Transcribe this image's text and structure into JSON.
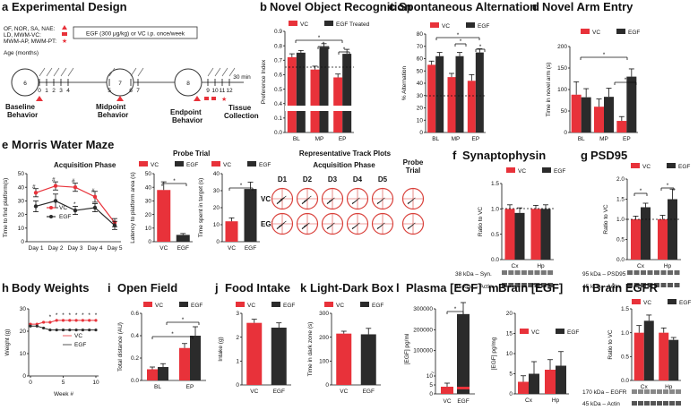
{
  "colors": {
    "vc": "#e8323a",
    "egf": "#2b2b2b",
    "axis": "#111111",
    "track": "#d9403a"
  },
  "panels": {
    "a": {
      "letter": "a",
      "title": "Experimental Design",
      "legend_items": [
        "OF, NOR, SA, NAE:",
        "LD, MWM-VC:",
        "MWM-AP, MWM-PT:"
      ],
      "treatment": "EGF (300 μg/kg) or VC i.p. once/week",
      "age_label": "Age (months)",
      "circles": [
        "6",
        "7",
        "8"
      ],
      "ticks": [
        "0",
        "1",
        "2",
        "3",
        "4",
        "5",
        "6",
        "7",
        "9",
        "10",
        "11",
        "12"
      ],
      "duration": "30 min",
      "stages": [
        "Baseline",
        "Behavior",
        "Midpoint",
        "Behavior",
        "Endpoint",
        "Behavior",
        "Tissue",
        "Collection"
      ]
    },
    "b": {
      "letter": "b",
      "title": "Novel Object Recognition"
    },
    "c": {
      "letter": "c",
      "title": "Spontaneous Alternation"
    },
    "d": {
      "letter": "d",
      "title": "Novel Arm Entry"
    },
    "e": {
      "letter": "e",
      "title": "Morris Water Maze",
      "acq_title": "Acquisition Phase",
      "probe_title": "Probe Trial",
      "track_title": "Representative Track Plots",
      "track_sub": "Acquisition Phase",
      "track_probe": "Probe Trial",
      "track_cols": [
        "D1",
        "D2",
        "D3",
        "D4",
        "D5"
      ],
      "track_rows": [
        "VC",
        "EGF"
      ]
    },
    "f": {
      "letter": "f",
      "title": "Synaptophysin",
      "blot1": "38 kDa",
      "blot1_name": "Syn.",
      "blot2": "45 kDa",
      "blot2_name": "Actin"
    },
    "g": {
      "letter": "g",
      "title": "PSD95",
      "blot1": "95 kDa",
      "blot1_name": "PSD95",
      "blot2": "45 kDa",
      "blot2_name": "Actin"
    },
    "h": {
      "letter": "h",
      "title": "Body Weights"
    },
    "i": {
      "letter": "i",
      "title": "Open Field"
    },
    "j": {
      "letter": "j",
      "title": "Food Intake"
    },
    "k": {
      "letter": "k",
      "title": "Light-Dark Box"
    },
    "l": {
      "letter": "l",
      "title": "Plasma [EGF]"
    },
    "m": {
      "letter": "m",
      "title": "Brain [EGF]"
    },
    "n": {
      "letter": "n",
      "title": "Brain EGFR",
      "blot1": "170 kDa",
      "blot1_name": "EGFR",
      "blot2": "45 kDa",
      "blot2_name": "Actin"
    }
  },
  "chart_data": [
    {
      "id": "b",
      "type": "bar",
      "title": "Novel Object Recognition",
      "ylabel": "Preference Index",
      "categories": [
        "BL",
        "MP",
        "EP"
      ],
      "ylim": [
        0.0,
        0.9
      ],
      "yticks": [
        "0.0",
        "0.1",
        "0.4",
        "0.5",
        "0.6",
        "0.7",
        "0.8",
        "0.9"
      ],
      "legend": [
        "VC",
        "EGF Treated"
      ],
      "series": [
        {
          "name": "VC",
          "values": [
            0.67,
            0.56,
            0.49
          ],
          "err": [
            0.03,
            0.03,
            0.03
          ]
        },
        {
          "name": "EGF Treated",
          "values": [
            0.71,
            0.76,
            0.7
          ],
          "err": [
            0.02,
            0.03,
            0.04
          ]
        }
      ]
    },
    {
      "id": "c",
      "type": "bar",
      "title": "Spontaneous Alternation",
      "ylabel": "% Alternation",
      "categories": [
        "BL",
        "MP",
        "EP"
      ],
      "ylim": [
        0,
        80
      ],
      "yticks": [
        "0",
        "10",
        "20",
        "30",
        "40",
        "50",
        "60",
        "70",
        "80"
      ],
      "legend": [
        "VC",
        "EGF"
      ],
      "series": [
        {
          "name": "VC",
          "values": [
            55,
            45,
            42
          ],
          "err": [
            3,
            3,
            5
          ]
        },
        {
          "name": "EGF",
          "values": [
            62,
            62,
            65
          ],
          "err": [
            3,
            3,
            3
          ]
        }
      ]
    },
    {
      "id": "d",
      "type": "bar",
      "title": "Novel Arm Entry",
      "ylabel": "Time in novel arm (s)",
      "categories": [
        "BL",
        "MP",
        "EP"
      ],
      "ylim": [
        0,
        200
      ],
      "yticks": [
        "0",
        "50",
        "100",
        "150",
        "200"
      ],
      "legend": [
        "VC",
        "EGF"
      ],
      "series": [
        {
          "name": "VC",
          "values": [
            88,
            60,
            27
          ],
          "err": [
            30,
            18,
            10
          ]
        },
        {
          "name": "EGF",
          "values": [
            82,
            83,
            130
          ],
          "err": [
            20,
            20,
            18
          ]
        }
      ]
    },
    {
      "id": "e_acq",
      "type": "line",
      "title": "Acquisition Phase",
      "ylabel": "Time to find platform(s)",
      "categories": [
        "Day 1",
        "Day 2",
        "Day 3",
        "Day 4",
        "Day 5"
      ],
      "ylim": [
        0,
        50
      ],
      "yticks": [
        "0",
        "10",
        "20",
        "30",
        "40",
        "50"
      ],
      "legend": [
        "VC",
        "EGF"
      ],
      "series": [
        {
          "name": "VC",
          "values": [
            36,
            41,
            40,
            33,
            14
          ],
          "err": [
            3,
            3,
            3,
            4,
            3
          ]
        },
        {
          "name": "EGF",
          "values": [
            26,
            30,
            23,
            25,
            12
          ],
          "err": [
            4,
            5,
            3,
            3,
            3
          ]
        }
      ]
    },
    {
      "id": "e_lat",
      "type": "bar",
      "ylabel": "Latency to platform area (s)",
      "categories": [
        "VC",
        "EGF"
      ],
      "ylim": [
        0,
        50
      ],
      "yticks": [
        "0",
        "10",
        "20",
        "30",
        "40",
        "50"
      ],
      "legend": [
        "VC",
        "EGF"
      ],
      "values": [
        38,
        5
      ],
      "err": [
        6,
        1
      ]
    },
    {
      "id": "e_tgt",
      "type": "bar",
      "ylabel": "Time spent in target (s)",
      "categories": [
        "VC",
        "EGF"
      ],
      "ylim": [
        0,
        40
      ],
      "yticks": [
        "0",
        "10",
        "20",
        "30",
        "40"
      ],
      "legend": [
        "VC",
        "EGF"
      ],
      "values": [
        12,
        31
      ],
      "err": [
        2,
        4
      ]
    },
    {
      "id": "f",
      "type": "bar",
      "title": "Synaptophysin",
      "ylabel": "Ratio to VC",
      "categories": [
        "Cx",
        "Hp"
      ],
      "ylim": [
        0.0,
        1.5
      ],
      "yticks": [
        "0.0",
        "0.5",
        "1.0",
        "1.5"
      ],
      "legend": [
        "VC",
        "EGF"
      ],
      "series": [
        {
          "name": "VC",
          "values": [
            1.0,
            1.0
          ],
          "err": [
            0.08,
            0.07
          ]
        },
        {
          "name": "EGF",
          "values": [
            0.92,
            1.0
          ],
          "err": [
            0.1,
            0.08
          ]
        }
      ]
    },
    {
      "id": "g",
      "type": "bar",
      "title": "PSD95",
      "ylabel": "Ratio to VC",
      "categories": [
        "Cx",
        "Hp"
      ],
      "ylim": [
        0.0,
        2.0
      ],
      "yticks": [
        "0.0",
        "0.5",
        "1.0",
        "1.5",
        "2.0"
      ],
      "legend": [
        "VC",
        "EGF"
      ],
      "series": [
        {
          "name": "VC",
          "values": [
            1.0,
            1.0
          ],
          "err": [
            0.08,
            0.1
          ]
        },
        {
          "name": "EGF",
          "values": [
            1.3,
            1.5
          ],
          "err": [
            0.1,
            0.25
          ]
        }
      ]
    },
    {
      "id": "h",
      "type": "line",
      "title": "Body Weights",
      "ylabel": "Weight (g)",
      "xlabel": "Week #",
      "x": [
        0,
        1,
        2,
        3,
        4,
        5,
        6,
        7,
        8,
        9,
        10
      ],
      "ylim": [
        0,
        35
      ],
      "yticks": [
        "0",
        "10",
        "20",
        "30"
      ],
      "xticks": [
        "0",
        "5",
        "10"
      ],
      "legend": [
        "VC",
        "EGF"
      ],
      "series": [
        {
          "name": "VC",
          "values": [
            27,
            27,
            28,
            28,
            29,
            29,
            29,
            29,
            29,
            29,
            29
          ]
        },
        {
          "name": "EGF",
          "values": [
            26,
            26,
            25,
            24,
            24,
            24,
            24,
            24,
            24,
            24,
            24
          ]
        }
      ]
    },
    {
      "id": "i",
      "type": "bar",
      "title": "Open Field",
      "ylabel": "Total distance (AU)",
      "categories": [
        "BL",
        "EP"
      ],
      "ylim": [
        0.0,
        0.6
      ],
      "yticks": [
        "0.0",
        "0.2",
        "0.4",
        "0.6"
      ],
      "legend": [
        "VC",
        "EGF"
      ],
      "series": [
        {
          "name": "VC",
          "values": [
            0.1,
            0.29
          ],
          "err": [
            0.02,
            0.04
          ]
        },
        {
          "name": "EGF",
          "values": [
            0.12,
            0.4
          ],
          "err": [
            0.03,
            0.08
          ]
        }
      ]
    },
    {
      "id": "j",
      "type": "bar",
      "title": "Food Intake",
      "ylabel": "Intake (g)",
      "categories": [
        "VC",
        "EGF"
      ],
      "ylim": [
        0,
        3
      ],
      "yticks": [
        "0",
        "1",
        "2",
        "3"
      ],
      "legend": [
        "VC",
        "EGF"
      ],
      "values": [
        2.6,
        2.4
      ],
      "err": [
        0.15,
        0.2
      ]
    },
    {
      "id": "k",
      "type": "bar",
      "title": "Light-Dark Box",
      "ylabel": "Time in dark zone (s)",
      "categories": [
        "VC",
        "EGF"
      ],
      "ylim": [
        0,
        300
      ],
      "yticks": [
        "0",
        "100",
        "200",
        "300"
      ],
      "legend": [
        "VC",
        "EGF"
      ],
      "values": [
        215,
        212
      ],
      "err": [
        10,
        25
      ]
    },
    {
      "id": "l",
      "type": "bar",
      "title": "Plasma [EGF]",
      "ylabel": "[EGF] pg/ml",
      "categories": [
        "VC",
        "EGF"
      ],
      "ylim": [
        0,
        300000
      ],
      "yticks": [
        "0",
        "5",
        "10",
        "100000",
        "200000",
        "300000"
      ],
      "legend": [
        "VC",
        "EGF"
      ],
      "values": [
        4,
        275000
      ],
      "err": [
        2,
        55000
      ]
    },
    {
      "id": "m",
      "type": "bar",
      "title": "Brain [EGF]",
      "ylabel": "[EGF] pg/mg",
      "categories": [
        "Cx",
        "Hp"
      ],
      "ylim": [
        0,
        20
      ],
      "yticks": [
        "0",
        "5",
        "10",
        "15",
        "20"
      ],
      "legend": [
        "VC",
        "EGF"
      ],
      "series": [
        {
          "name": "VC",
          "values": [
            3.0,
            6.0
          ],
          "err": [
            1.5,
            2.5
          ]
        },
        {
          "name": "EGF",
          "values": [
            5.0,
            7.0
          ],
          "err": [
            3.0,
            3.5
          ]
        }
      ]
    },
    {
      "id": "n",
      "type": "bar",
      "title": "Brain EGFR",
      "ylabel": "Ratio to VC",
      "categories": [
        "Cx",
        "Hp"
      ],
      "ylim": [
        0.0,
        1.5
      ],
      "yticks": [
        "0.0",
        "0.5",
        "1.0",
        "1.5"
      ],
      "legend": [
        "VC",
        "EGF"
      ],
      "series": [
        {
          "name": "VC",
          "values": [
            1.0,
            1.0
          ],
          "err": [
            0.15,
            0.1
          ]
        },
        {
          "name": "EGF",
          "values": [
            1.25,
            0.85
          ],
          "err": [
            0.12,
            0.05
          ]
        }
      ]
    }
  ]
}
